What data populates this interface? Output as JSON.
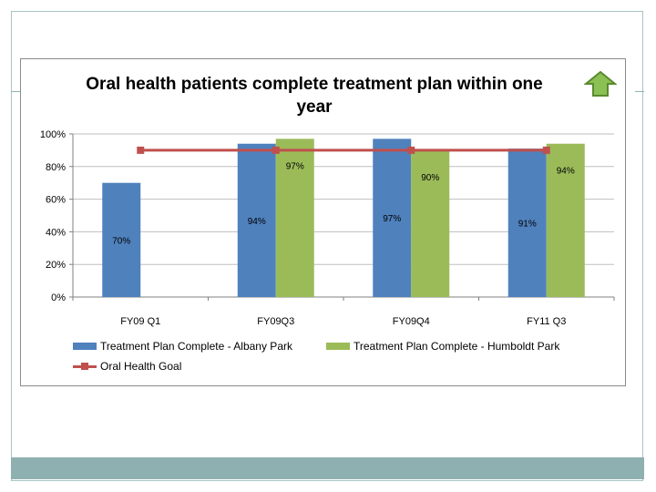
{
  "colors": {
    "albany": "#4f81bd",
    "humboldt": "#9bbb59",
    "goal": "#c0504d",
    "grid": "#bfbfbf",
    "arrow_fill": "#8ac054",
    "arrow_stroke": "#5a8a2e"
  },
  "icons": {
    "trend": "up-arrow-icon"
  },
  "chart_data": {
    "type": "bar",
    "title": "Oral health patients complete treatment plan within one year",
    "categories": [
      "FY09 Q1",
      "FY09Q3",
      "FY09Q4",
      "FY11 Q3"
    ],
    "series": [
      {
        "name": "Treatment Plan Complete - Albany Park",
        "values": [
          70,
          94,
          97,
          91
        ],
        "labels": [
          "70%",
          "94%",
          "97%",
          "91%"
        ]
      },
      {
        "name": "Treatment Plan Complete - Humboldt Park",
        "values": [
          null,
          97,
          90,
          94
        ],
        "labels": [
          "",
          "97%",
          "90%",
          "94%"
        ]
      }
    ],
    "goal": {
      "name": "Oral Health Goal",
      "values": [
        90,
        90,
        90,
        90
      ]
    },
    "ylim": [
      0,
      100
    ],
    "yticks": [
      0,
      20,
      40,
      60,
      80,
      100
    ],
    "ytick_labels": [
      "0%",
      "20%",
      "40%",
      "60%",
      "80%",
      "100%"
    ],
    "grid": true,
    "legend_position": "bottom"
  }
}
